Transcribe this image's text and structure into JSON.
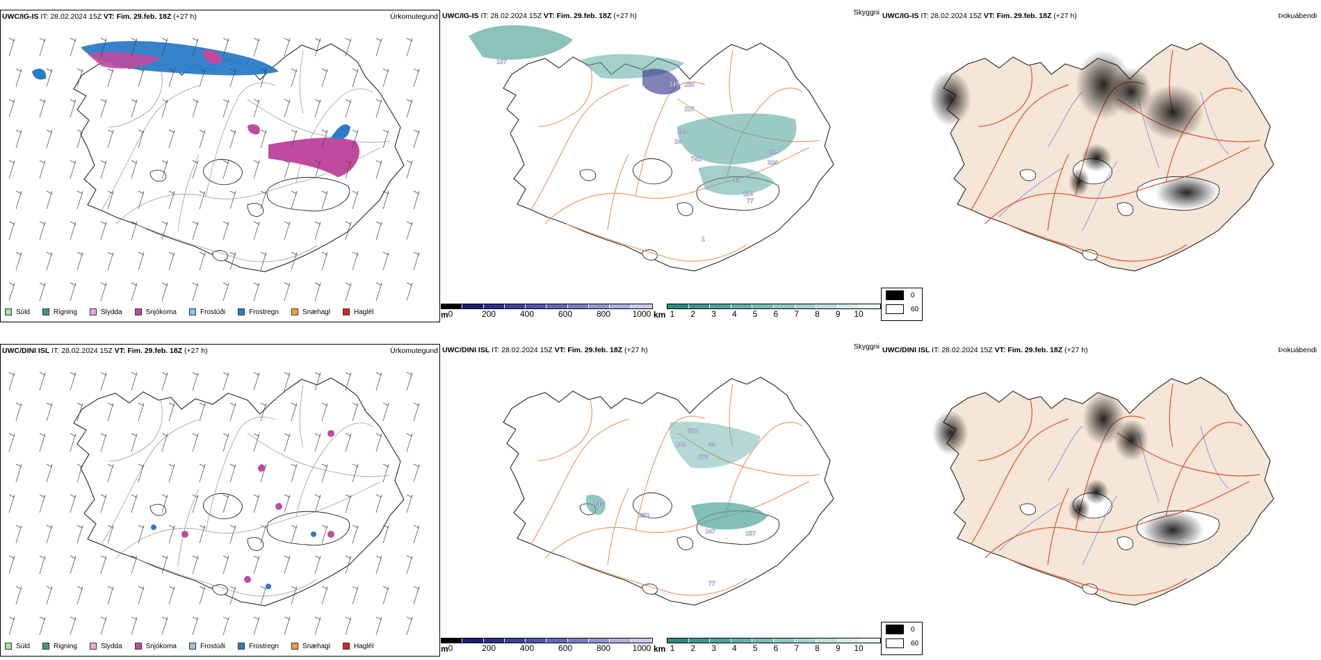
{
  "rows": [
    {
      "precip": {
        "model": "UWC/IG-IS",
        "it_label": "IT:",
        "it_value": "28.02.2024 15Z",
        "vt_label": "VT:",
        "vt_value": "Fim. 29.feb. 18Z",
        "lead": "(+27 h)",
        "title": "Úrkomutegund"
      },
      "vis": {
        "model": "UWC/IG-IS",
        "it_label": "IT:",
        "it_value": "28.02.2024 15Z",
        "vt_label": "VT:",
        "vt_value": "Fim. 29.feb. 18Z",
        "lead": "(+27 h)",
        "title": "Skyggni",
        "labels": [
          "137",
          "349",
          "250",
          "227",
          "229",
          "26",
          "741",
          "41",
          "116",
          "259",
          "324",
          "77",
          "1"
        ]
      },
      "fog": {
        "model": "UWC/IG-IS",
        "it_label": "IT:",
        "it_value": "28.02.2024 15Z",
        "vt_label": "VT:",
        "vt_value": "Fim. 29.feb. 18Z",
        "lead": "(+27 h)",
        "title": "Þokuábendi"
      }
    },
    {
      "precip": {
        "model": "UWC/DINI ISL",
        "it_label": "IT:",
        "it_value": "28.02.2024 15Z",
        "vt_label": "VT:",
        "vt_value": "Fim. 29.feb. 18Z",
        "lead": "(+27 h)",
        "title": "Úrkomutegund"
      },
      "vis": {
        "model": "UWC/DINI ISL",
        "it_label": "IT:",
        "it_value": "28.02.2024 15Z",
        "vt_label": "VT:",
        "vt_value": "Fim. 29.feb. 18Z",
        "lead": "(+27 h)",
        "title": "Skyggni",
        "labels": [
          "562",
          "209",
          "44",
          "273",
          "144",
          "253",
          "247",
          "157",
          "77"
        ]
      },
      "fog": {
        "model": "UWC/DINI ISL",
        "it_label": "IT:",
        "it_value": "28.02.2024 15Z",
        "vt_label": "VT:",
        "vt_value": "Fim. 29.feb. 18Z",
        "lead": "(+27 h)",
        "title": "Þokuábendi"
      }
    }
  ],
  "precip_legend": [
    {
      "label": "Súld",
      "color": "#9be89b"
    },
    {
      "label": "Rigning",
      "color": "#3aa06a"
    },
    {
      "label": "Slydda",
      "color": "#f2a8d8"
    },
    {
      "label": "Snjókoma",
      "color": "#c04aa0"
    },
    {
      "label": "Frostúði",
      "color": "#8fc1ee"
    },
    {
      "label": "Frostregn",
      "color": "#2a7cc8"
    },
    {
      "label": "Snæhagl",
      "color": "#f2a030"
    },
    {
      "label": "Haglél",
      "color": "#e02020"
    }
  ],
  "height_scale": {
    "unit": "m",
    "ticks": [
      "0",
      "200",
      "400",
      "600",
      "800",
      "1000"
    ],
    "colors": [
      "#000000",
      "#1c1c6e",
      "#2e2e8a",
      "#3f3f9c",
      "#5252aa",
      "#6666b8",
      "#7b7bc4",
      "#9393d0",
      "#aeaede",
      "#c8c8ea"
    ]
  },
  "visibility_scale": {
    "unit": "km",
    "ticks": [
      "1",
      "2",
      "3",
      "4",
      "5",
      "6",
      "7",
      "8",
      "9",
      "10"
    ],
    "colors": [
      "#2e8a80",
      "#3f9690",
      "#50a29c",
      "#63aea8",
      "#77bab4",
      "#8ec6c0",
      "#a5d2cd",
      "#bcdeda",
      "#d4eae7",
      "#ebf6f4"
    ]
  },
  "fog_legend": [
    {
      "label": "0",
      "color": "#000000"
    },
    {
      "label": "60",
      "color": "#ffffff"
    }
  ],
  "colors": {
    "land_fog": "#f5e6d8",
    "roads": "#e8884a",
    "roads_fog": "#e0502a",
    "rivers": "#7b8cf0",
    "teal": "#5aa8a0",
    "snow": "#c04aa0",
    "frz_rain": "#2a7cc8"
  }
}
